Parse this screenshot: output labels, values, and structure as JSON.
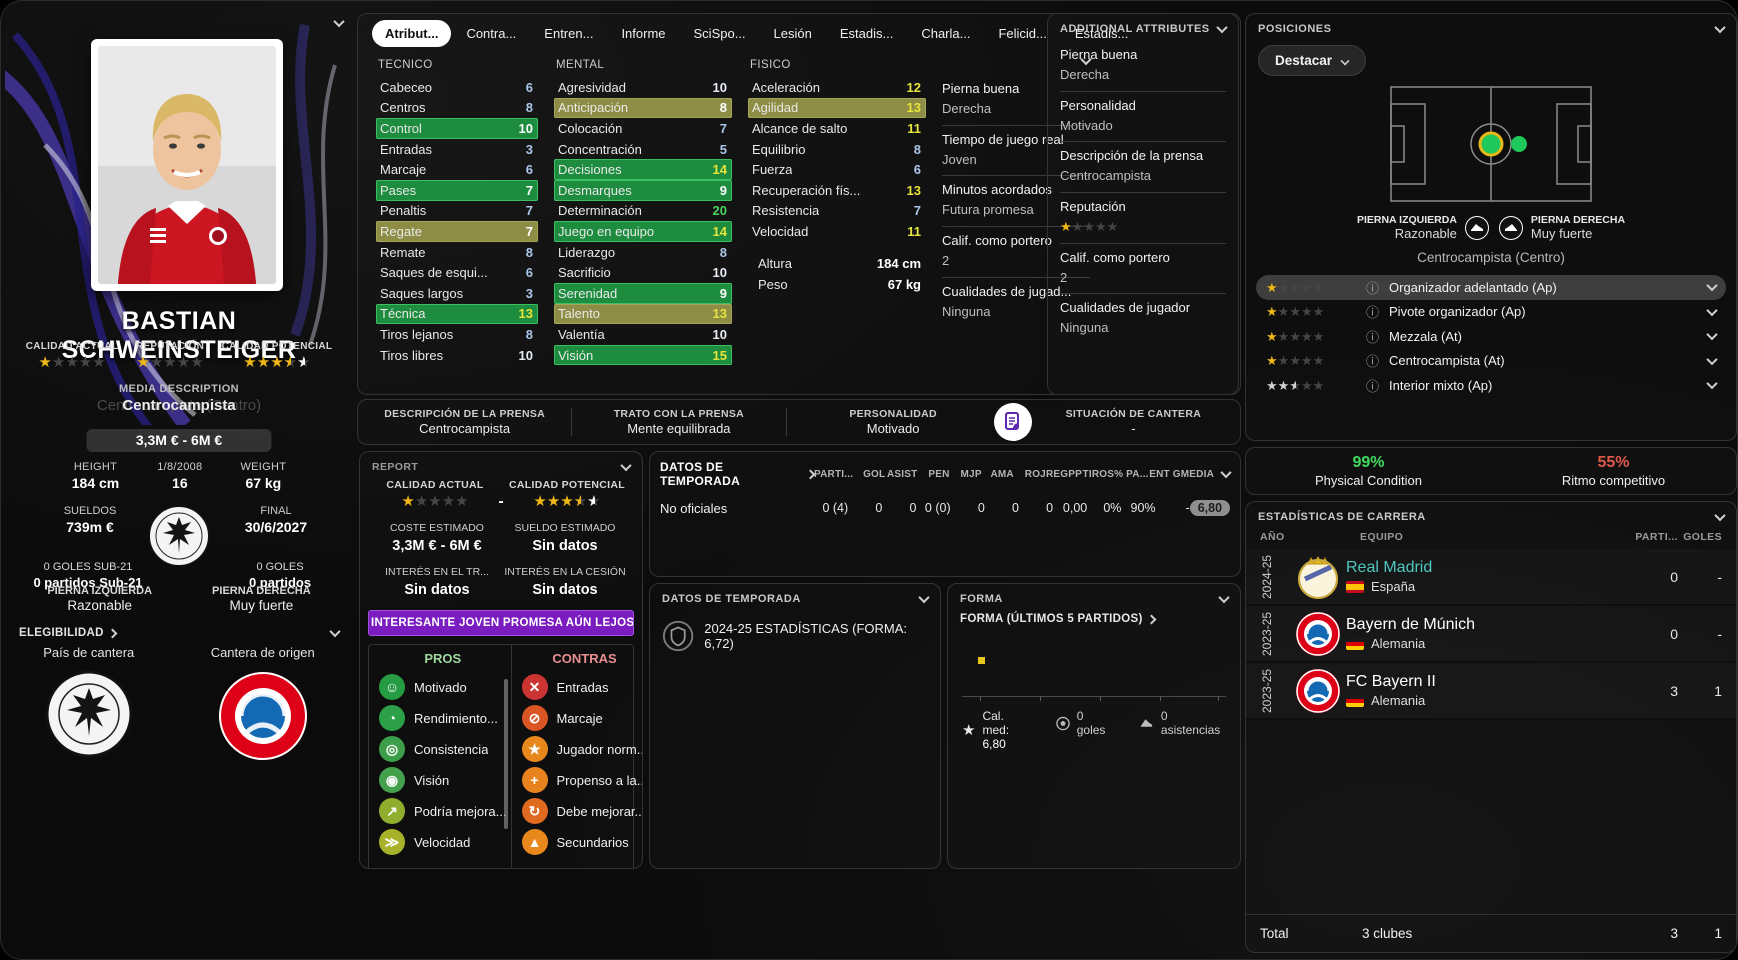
{
  "tabs": [
    {
      "label": "Atribut...",
      "active": true
    },
    {
      "label": "Contra...",
      "active": false
    },
    {
      "label": "Entren...",
      "active": false
    },
    {
      "label": "Informe",
      "active": false
    },
    {
      "label": "SciSpo...",
      "active": false
    },
    {
      "label": "Lesión",
      "active": false
    },
    {
      "label": "Estadis...",
      "active": false
    },
    {
      "label": "Charla...",
      "active": false
    },
    {
      "label": "Felicid...",
      "active": false
    },
    {
      "label": "Estadis...",
      "active": false
    }
  ],
  "sidebar": {
    "name": "BASTIAN SCHWEINSTEIGER",
    "ratings": [
      {
        "label": "CALIDAD ACTUAL",
        "stars": [
          "gold",
          "dim",
          "dim",
          "dim",
          "dim"
        ]
      },
      {
        "label": "REPUTACIÓN",
        "stars": [
          "gold",
          "dim",
          "dim",
          "dim",
          "dim"
        ]
      },
      {
        "label": "CALIDAD POTENCIAL",
        "stars": [
          "gold",
          "gold",
          "gold",
          "gold-half",
          "white-half"
        ]
      }
    ],
    "media_label": "MEDIA DESCRIPTION",
    "media_value": "Centrocampista",
    "media_ghost": "Centrocampista (Centro)",
    "value_range": "3,3M € - 6M €",
    "vitals": [
      {
        "label": "HEIGHT",
        "value": "184 cm"
      },
      {
        "label": "1/8/2008",
        "value": "16"
      },
      {
        "label": "WEIGHT",
        "value": "67 kg"
      }
    ],
    "wage_label": "SUELDOS",
    "wage": "739m €",
    "final_label": "FINAL",
    "final": "30/6/2027",
    "u21_goals": "0 GOLES SUB-21",
    "u21_apps": "0 partidos Sub-21",
    "goals": "0 GOLES",
    "apps": "0 partidos",
    "left_foot_label": "PIERNA IZQUIERDA",
    "left_foot": "Razonable",
    "right_foot_label": "PIERNA DERECHA",
    "right_foot": "Muy fuerte",
    "eligibility_label": "ELEGIBILIDAD",
    "pot_nation_label": "País de cantera",
    "origin_label": "Cantera de origen"
  },
  "attributes": {
    "technical": {
      "title": "TECNICO",
      "items": [
        {
          "name": "Cabeceo",
          "value": 6
        },
        {
          "name": "Centros",
          "value": 8
        },
        {
          "name": "Control",
          "value": 10,
          "hl": "green"
        },
        {
          "name": "Entradas",
          "value": 3
        },
        {
          "name": "Marcaje",
          "value": 6
        },
        {
          "name": "Pases",
          "value": 7,
          "hl": "green"
        },
        {
          "name": "Penaltis",
          "value": 7
        },
        {
          "name": "Regate",
          "value": 7,
          "hl": "olive"
        },
        {
          "name": "Remate",
          "value": 8
        },
        {
          "name": "Saques de esqui...",
          "value": 6
        },
        {
          "name": "Saques largos",
          "value": 3
        },
        {
          "name": "Técnica",
          "value": 13,
          "hl": "green"
        },
        {
          "name": "Tiros lejanos",
          "value": 8
        },
        {
          "name": "Tiros libres",
          "value": 10
        }
      ]
    },
    "mental": {
      "title": "MENTAL",
      "items": [
        {
          "name": "Agresividad",
          "value": 10
        },
        {
          "name": "Anticipación",
          "value": 8,
          "hl": "olive"
        },
        {
          "name": "Colocación",
          "value": 7
        },
        {
          "name": "Concentración",
          "value": 5
        },
        {
          "name": "Decisiones",
          "value": 14,
          "hl": "green"
        },
        {
          "name": "Desmarques",
          "value": 9,
          "hl": "green"
        },
        {
          "name": "Determinación",
          "value": 20
        },
        {
          "name": "Juego en equipo",
          "value": 14,
          "hl": "green"
        },
        {
          "name": "Liderazgo",
          "value": 8
        },
        {
          "name": "Sacrificio",
          "value": 10
        },
        {
          "name": "Serenidad",
          "value": 9,
          "hl": "green"
        },
        {
          "name": "Talento",
          "value": 13,
          "hl": "olive"
        },
        {
          "name": "Valentía",
          "value": 10
        },
        {
          "name": "Visión",
          "value": 15,
          "hl": "green"
        }
      ]
    },
    "physical": {
      "title": "FISICO",
      "items": [
        {
          "name": "Aceleración",
          "value": 12
        },
        {
          "name": "Agilidad",
          "value": 13,
          "hl": "olive"
        },
        {
          "name": "Alcance de salto",
          "value": 11
        },
        {
          "name": "Equilibrio",
          "value": 8
        },
        {
          "name": "Fuerza",
          "value": 6
        },
        {
          "name": "Recuperación fís...",
          "value": 13
        },
        {
          "name": "Resistencia",
          "value": 7
        },
        {
          "name": "Velocidad",
          "value": 11
        }
      ]
    },
    "body": [
      {
        "label": "Altura",
        "value": "184 cm"
      },
      {
        "label": "Peso",
        "value": "67 kg"
      }
    ],
    "extra_pairs": [
      {
        "label": "Pierna buena",
        "value": "Derecha"
      },
      {
        "label": "Tiempo de juego real",
        "value": "Joven"
      },
      {
        "label": "Minutos acordados",
        "value": "Futura promesa"
      },
      {
        "label": "Calif. como portero",
        "value": "2"
      },
      {
        "label": "Cualidades de jugad...",
        "value": "Ninguna"
      }
    ]
  },
  "additional": {
    "title": "ADDITIONAL ATTRIBUTES",
    "pairs": [
      {
        "label": "Pierna buena",
        "value": "Derecha"
      },
      {
        "label": "Personalidad",
        "value": "Motivado"
      },
      {
        "label": "Descripción de la prensa",
        "value": "Centrocampista"
      },
      {
        "label": "Reputación",
        "stars": [
          "gold",
          "dim",
          "dim",
          "dim",
          "dim"
        ]
      },
      {
        "label": "Calif. como portero",
        "value": "2"
      },
      {
        "label": "Cualidades de jugador",
        "value": "Ninguna"
      }
    ]
  },
  "press": {
    "cells": [
      {
        "label": "DESCRIPCIÓN DE LA PRENSA",
        "value": "Centrocampista"
      },
      {
        "label": "TRATO CON LA PRENSA",
        "value": "Mente equilibrada"
      },
      {
        "label": "PERSONALIDAD",
        "value": "Motivado"
      },
      {
        "label": "SITUACIÓN DE CANTERA",
        "value": "-"
      }
    ]
  },
  "report": {
    "title": "REPORT",
    "current_label": "CALIDAD ACTUAL",
    "current_stars": [
      "gold",
      "dim",
      "dim",
      "dim",
      "dim"
    ],
    "dash": "-",
    "potential_label": "CALIDAD POTENCIAL",
    "potential_stars": [
      "gold",
      "gold",
      "gold",
      "gold-half",
      "white-half"
    ],
    "cost_label": "COSTE ESTIMADO",
    "cost": "3,3M € - 6M €",
    "salary_label": "SUELDO ESTIMADO",
    "salary": "Sin datos",
    "transfer_label": "INTERÉS EN EL TR...",
    "transfer": "Sin datos",
    "loan_label": "INTERÉS EN LA CESIÓN",
    "loan": "Sin datos",
    "banner": "INTERESANTE JOVEN PROMESA AÚN LEJOS...",
    "pros_title": "PROS",
    "cons_title": "CONTRAS",
    "pros": [
      {
        "label": "Motivado",
        "glyph": "☺",
        "color": "#259c43"
      },
      {
        "label": "Rendimiento...",
        "glyph": "◔",
        "color": "#2ba048"
      },
      {
        "label": "Consistencia",
        "glyph": "◎",
        "color": "#3d9e4a"
      },
      {
        "label": "Visión",
        "glyph": "◉",
        "color": "#45a04c"
      },
      {
        "label": "Podría mejora...",
        "glyph": "↗",
        "color": "#8fae2e"
      },
      {
        "label": "Velocidad",
        "glyph": "≫",
        "color": "#a7b22a"
      }
    ],
    "cons": [
      {
        "label": "Entradas",
        "glyph": "✕",
        "color": "#cc3434"
      },
      {
        "label": "Marcaje",
        "glyph": "⊘",
        "color": "#da5524"
      },
      {
        "label": "Jugador norm...",
        "glyph": "★",
        "color": "#e8871c"
      },
      {
        "label": "Propenso a la...",
        "glyph": "+",
        "color": "#e8821e"
      },
      {
        "label": "Debe mejorar...",
        "glyph": "↻",
        "color": "#df6a20"
      },
      {
        "label": "Secundarios",
        "glyph": "▲",
        "color": "#e8871c"
      }
    ]
  },
  "season_table": {
    "title": "DATOS DE TEMPORADA",
    "columns": [
      "PARTI...",
      "GOL",
      "ASIST",
      "PEN",
      "MJP",
      "AMA",
      "ROJ",
      "REGPP",
      "TIROS",
      "% PA...",
      "ENT G",
      "MEDIA"
    ],
    "row_label": "No oficiales",
    "values": [
      {
        "text": "0 (4)"
      },
      {
        "text": "0",
        "color": "green"
      },
      {
        "text": "0",
        "color": "green"
      },
      {
        "text": "0 (0)"
      },
      {
        "text": "0"
      },
      {
        "text": "0",
        "color": "yellow"
      },
      {
        "text": "0",
        "color": "red"
      },
      {
        "text": "0,00"
      },
      {
        "text": "0%"
      },
      {
        "text": "90%"
      },
      {
        "text": "-"
      },
      {
        "text": "6,80",
        "badge": true
      }
    ]
  },
  "season_panel": {
    "title": "DATOS DE TEMPORADA",
    "line": "2024-25 ESTADÍSTICAS (FORMA: 6,72)"
  },
  "form": {
    "title": "FORMA",
    "subtitle": "FORMA (ÚLTIMOS 5 PARTIDOS)",
    "avg_label": "Cal. med:",
    "avg": "6,80",
    "goals": "0 goles",
    "assists": "0 asistencias"
  },
  "positions": {
    "title": "POSICIONES",
    "dropdown": "Destacar",
    "left_foot_label": "PIERNA IZQUIERDA",
    "left_foot": "Razonable",
    "right_foot_label": "PIERNA DERECHA",
    "right_foot": "Muy fuerte",
    "position": "Centrocampista (Centro)",
    "roles": [
      {
        "stars": [
          "gold",
          "dim",
          "dim",
          "dim",
          "dim"
        ],
        "label": "Organizador adelantado (Ap)",
        "highlighted": true
      },
      {
        "stars": [
          "gold",
          "dim",
          "dim",
          "dim",
          "dim"
        ],
        "label": "Pivote organizador (Ap)",
        "highlighted": false
      },
      {
        "stars": [
          "gold",
          "dim",
          "dim",
          "dim",
          "dim"
        ],
        "label": "Mezzala (At)",
        "highlighted": false
      },
      {
        "stars": [
          "gold",
          "dim",
          "dim",
          "dim",
          "dim"
        ],
        "label": "Centrocampista (At)",
        "highlighted": false
      },
      {
        "stars": [
          "silver",
          "silver",
          "silver-half",
          "dim",
          "dim"
        ],
        "label": "Interior mixto (Ap)",
        "highlighted": false
      }
    ]
  },
  "condition": {
    "physical_value": "99%",
    "physical_label": "Physical Condition",
    "pace_value": "55%",
    "pace_label": "Ritmo competitivo"
  },
  "career": {
    "title": "ESTADÍSTICAS DE CARRERA",
    "col_year": "AÑO",
    "col_team": "EQUIPO",
    "col_apps": "PARTI...",
    "col_goals": "GOLES",
    "rows": [
      {
        "year": "2024-25",
        "team": "Real Madrid",
        "country": "España",
        "flag": "es",
        "logo": "rm",
        "apps": "0",
        "goals": "-",
        "accent": true
      },
      {
        "year": "2023-25",
        "team": "Bayern de Múnich",
        "country": "Alemania",
        "flag": "de",
        "logo": "fcb",
        "apps": "0",
        "goals": "-",
        "accent": false
      },
      {
        "year": "2023-25",
        "team": "FC Bayern II",
        "country": "Alemania",
        "flag": "de",
        "logo": "fcb",
        "apps": "3",
        "goals": "1",
        "accent": false
      }
    ],
    "total_label": "Total",
    "total_clubs": "3 clubes",
    "total_apps": "3",
    "total_goals": "1"
  }
}
